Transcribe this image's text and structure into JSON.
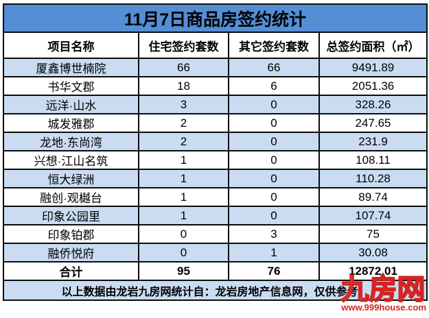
{
  "title": "11月7日商品房签约统计",
  "table": {
    "headers": [
      "项目名称",
      "住宅签约套数",
      "其它签约套数",
      "总签约面积（㎡）"
    ],
    "rows": [
      {
        "name": "厦鑫博世楠院",
        "residential": "66",
        "other": "66",
        "area": "9491.89"
      },
      {
        "name": "书华文郡",
        "residential": "18",
        "other": "6",
        "area": "2051.36"
      },
      {
        "name": "远洋·山水",
        "residential": "3",
        "other": "0",
        "area": "328.26"
      },
      {
        "name": "城发雅郡",
        "residential": "2",
        "other": "0",
        "area": "247.65"
      },
      {
        "name": "龙地·东尚湾",
        "residential": "2",
        "other": "0",
        "area": "231.9"
      },
      {
        "name": "兴想·江山名筑",
        "residential": "1",
        "other": "0",
        "area": "108.11"
      },
      {
        "name": "恒大绿洲",
        "residential": "1",
        "other": "0",
        "area": "110.28"
      },
      {
        "name": "融创·观樾台",
        "residential": "1",
        "other": "0",
        "area": "89.74"
      },
      {
        "name": "印象公园里",
        "residential": "1",
        "other": "0",
        "area": "107.74"
      },
      {
        "name": "印象铂郡",
        "residential": "0",
        "other": "3",
        "area": "75"
      },
      {
        "name": "融侨悦府",
        "residential": "0",
        "other": "1",
        "area": "30.08"
      }
    ],
    "total": {
      "label": "合计",
      "residential": "95",
      "other": "76",
      "area": "12872.01"
    }
  },
  "footer": "以上数据由龙岩九房网统计自：龙岩房地产信息网，仅供参考！",
  "watermark": {
    "brand": "九房网",
    "url": "www.999house.com",
    "color": "#d42421"
  },
  "colors": {
    "title_bg": "#548ED4",
    "row_alt_bg": "#C9DCF1",
    "row_bg": "#FFFFFF",
    "border": "#0B0B0B",
    "watermark_red": "#D42421"
  },
  "chart_data": {
    "type": "table",
    "title": "11月7日商品房签约统计",
    "columns": [
      "项目名称",
      "住宅签约套数",
      "其它签约套数",
      "总签约面积（㎡）"
    ],
    "rows": [
      [
        "厦鑫博世楠院",
        66,
        66,
        9491.89
      ],
      [
        "书华文郡",
        18,
        6,
        2051.36
      ],
      [
        "远洋·山水",
        3,
        0,
        328.26
      ],
      [
        "城发雅郡",
        2,
        0,
        247.65
      ],
      [
        "龙地·东尚湾",
        2,
        0,
        231.9
      ],
      [
        "兴想·江山名筑",
        1,
        0,
        108.11
      ],
      [
        "恒大绿洲",
        1,
        0,
        110.28
      ],
      [
        "融创·观樾台",
        1,
        0,
        89.74
      ],
      [
        "印象公园里",
        1,
        0,
        107.74
      ],
      [
        "印象铂郡",
        0,
        3,
        75
      ],
      [
        "融侨悦府",
        0,
        1,
        30.08
      ]
    ],
    "total_row": [
      "合计",
      95,
      76,
      12872.01
    ],
    "note": "以上数据由龙岩九房网统计自：龙岩房地产信息网，仅供参考！"
  }
}
